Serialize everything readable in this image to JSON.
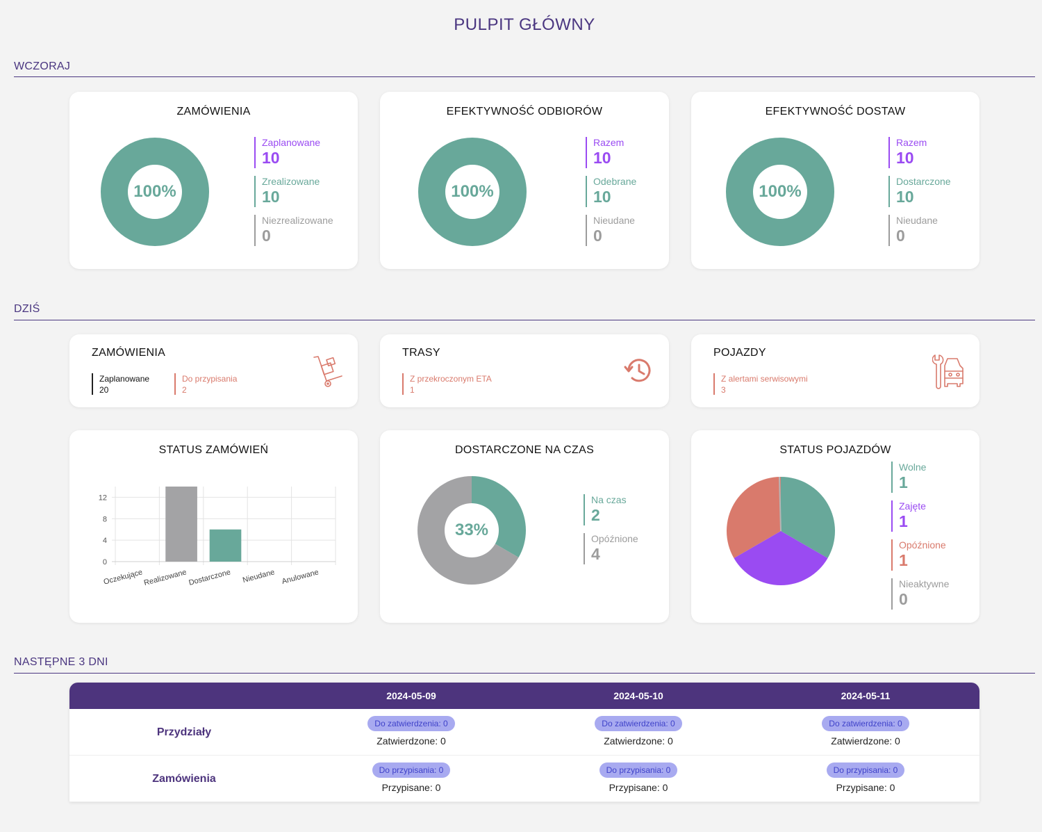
{
  "page_title": "PULPIT GŁÓWNY",
  "sections": {
    "yesterday": "WCZORAJ",
    "today": "DZIŚ",
    "next": "NASTĘPNE 3 DNI"
  },
  "yesterday": {
    "orders": {
      "title": "ZAMÓWIENIA",
      "percent": "100%",
      "legend": [
        {
          "label": "Zaplanowane",
          "value": "10"
        },
        {
          "label": "Zrealizowane",
          "value": "10"
        },
        {
          "label": "Niezrealizowane",
          "value": "0"
        }
      ]
    },
    "pickups": {
      "title": "EFEKTYWNOŚĆ ODBIORÓW",
      "percent": "100%",
      "legend": [
        {
          "label": "Razem",
          "value": "10"
        },
        {
          "label": "Odebrane",
          "value": "10"
        },
        {
          "label": "Nieudane",
          "value": "0"
        }
      ]
    },
    "deliveries": {
      "title": "EFEKTYWNOŚĆ DOSTAW",
      "percent": "100%",
      "legend": [
        {
          "label": "Razem",
          "value": "10"
        },
        {
          "label": "Dostarczone",
          "value": "10"
        },
        {
          "label": "Nieudane",
          "value": "0"
        }
      ]
    }
  },
  "today": {
    "orders": {
      "title": "ZAMÓWIENIA",
      "stats": [
        {
          "label": "Zaplanowane",
          "value": "20"
        },
        {
          "label": "Do przypisania",
          "value": "2"
        }
      ],
      "icon": "hand-truck-icon"
    },
    "routes": {
      "title": "TRASY",
      "stats": [
        {
          "label": "Z przekroczonym ETA",
          "value": "1"
        }
      ],
      "icon": "history-clock-icon"
    },
    "vehicles": {
      "title": "POJAZDY",
      "stats": [
        {
          "label": "Z alertami serwisowymi",
          "value": "3"
        }
      ],
      "icon": "car-wrench-icon"
    },
    "order_status": {
      "title": "STATUS ZAMÓWIEŃ"
    },
    "on_time": {
      "title": "DOSTARCZONE NA CZAS",
      "percent": "33%",
      "legend": [
        {
          "label": "Na czas",
          "value": "2"
        },
        {
          "label": "Opóźnione",
          "value": "4"
        }
      ]
    },
    "vehicle_status": {
      "title": "STATUS POJAZDÓW",
      "legend": [
        {
          "label": "Wolne",
          "value": "1"
        },
        {
          "label": "Zajęte",
          "value": "1"
        },
        {
          "label": "Opóźnione",
          "value": "1"
        },
        {
          "label": "Nieaktywne",
          "value": "0"
        }
      ]
    }
  },
  "colors": {
    "teal": "#68a89a",
    "purple": "#9a4bf2",
    "gray": "#a3a3a5",
    "red": "#d97a6c",
    "header": "#4d347d",
    "pill": "#a8aaf0"
  },
  "chart_data": [
    {
      "type": "bar",
      "title": "STATUS ZAMÓWIEŃ",
      "categories": [
        "Oczekujące",
        "Realizowane",
        "Dostarczone",
        "Nieudane",
        "Anulowane"
      ],
      "values": [
        0,
        14,
        6,
        0,
        0
      ],
      "bar_colors": [
        "#a3a3a5",
        "#a3a3a5",
        "#68a89a",
        "#a3a3a5",
        "#a3a3a5"
      ],
      "ylim": [
        0,
        14
      ],
      "yticks": [
        "0",
        "4",
        "8",
        "12"
      ],
      "grid": true
    },
    {
      "type": "pie",
      "title": "DOSTARCZONE NA CZAS",
      "labels": [
        "Na czas",
        "Opóźnione"
      ],
      "values": [
        2,
        4
      ],
      "colors": [
        "#68a89a",
        "#a3a3a5"
      ],
      "donut": true
    },
    {
      "type": "pie",
      "title": "STATUS POJAZDÓW",
      "labels": [
        "Wolne",
        "Zajęte",
        "Opóźnione",
        "Nieaktywne"
      ],
      "values": [
        1,
        1,
        1,
        0
      ],
      "colors": [
        "#68a89a",
        "#9a4bf2",
        "#d97a6c",
        "#a3a3a5"
      ]
    }
  ],
  "next_days": {
    "dates": [
      "2024-05-09",
      "2024-05-10",
      "2024-05-11"
    ],
    "rows": [
      {
        "label": "Przydziały",
        "cells": [
          {
            "pill": "Do zatwierdzenia: 0",
            "plain": "Zatwierdzone: 0"
          },
          {
            "pill": "Do zatwierdzenia: 0",
            "plain": "Zatwierdzone: 0"
          },
          {
            "pill": "Do zatwierdzenia: 0",
            "plain": "Zatwierdzone: 0"
          }
        ]
      },
      {
        "label": "Zamówienia",
        "cells": [
          {
            "pill": "Do przypisania: 0",
            "plain": "Przypisane: 0"
          },
          {
            "pill": "Do przypisania: 0",
            "plain": "Przypisane: 0"
          },
          {
            "pill": "Do przypisania: 0",
            "plain": "Przypisane: 0"
          }
        ]
      }
    ]
  }
}
